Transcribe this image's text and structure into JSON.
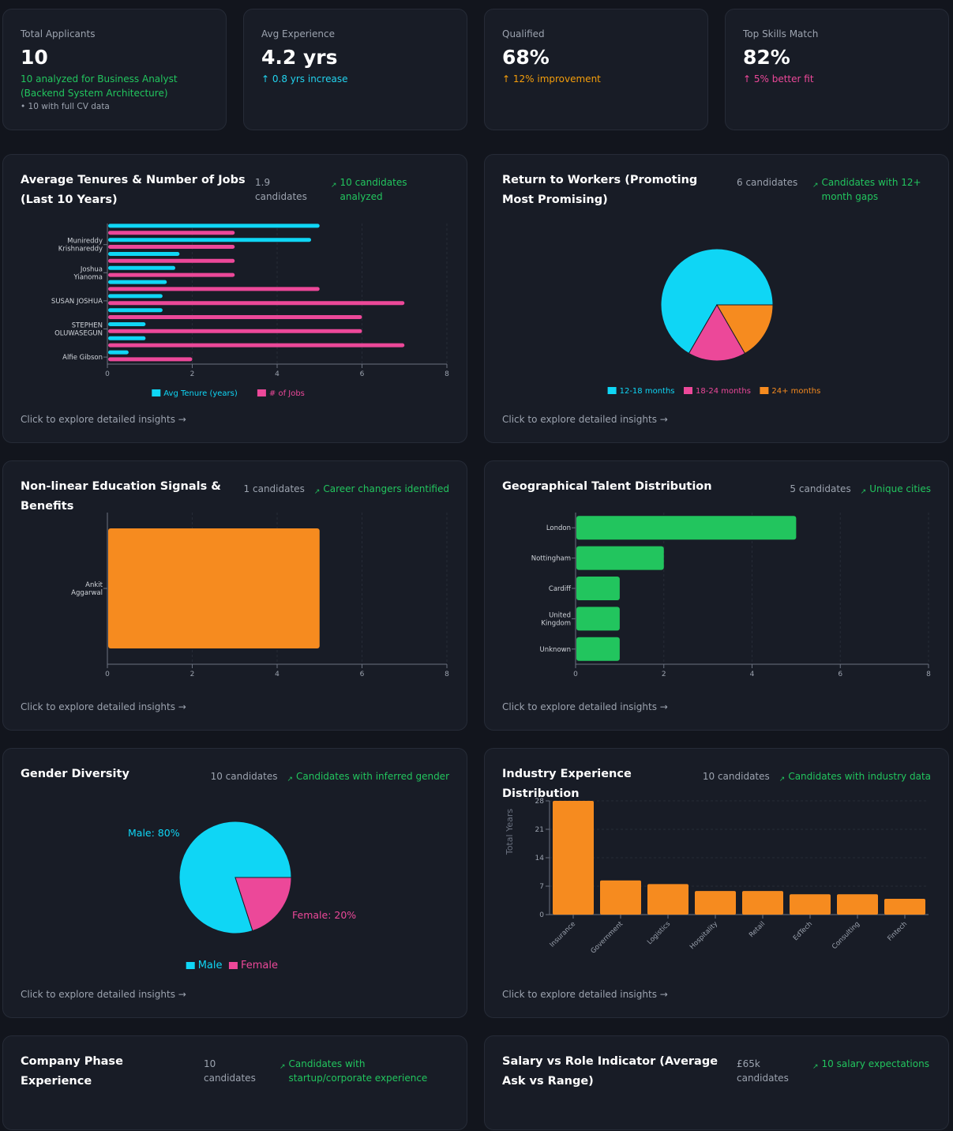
{
  "kpis": [
    {
      "label": "Total Applicants",
      "value": "10",
      "sub": "10 analyzed for Business Analyst (Backend System Architecture)",
      "sub_color": "#22c55e",
      "note": "• 10 with full CV data"
    },
    {
      "label": "Avg Experience",
      "value": "4.2 yrs",
      "sub": "↑ 0.8 yrs increase",
      "sub_color": "#22d3ee"
    },
    {
      "label": "Qualified",
      "value": "68%",
      "sub": "↑ 12% improvement",
      "sub_color": "#f59e0b"
    },
    {
      "label": "Top Skills Match",
      "value": "82%",
      "sub": "↑ 5% better fit",
      "sub_color": "#ec4899"
    }
  ],
  "explore_label": "Click to explore detailed insights →",
  "cards": {
    "tenure": {
      "title": "Average Tenures & Number of Jobs (Last 10 Years)",
      "meta": "1.9 candidates",
      "trend": "10 candidates analyzed"
    },
    "returners": {
      "title": "Return to Workers (Promoting Most Promising)",
      "meta": "6 candidates",
      "trend": "Candidates with 12+ month gaps"
    },
    "education": {
      "title": "Non-linear Education Signals & Benefits",
      "meta": "1 candidates",
      "trend": "Career changers identified"
    },
    "geo": {
      "title": "Geographical Talent Distribution",
      "meta": "5 candidates",
      "trend": "Unique cities"
    },
    "gender": {
      "title": "Gender Diversity",
      "meta": "10 candidates",
      "trend": "Candidates with inferred gender"
    },
    "industry": {
      "title": "Industry Experience Distribution",
      "meta": "10 candidates",
      "trend": "Candidates with industry data"
    },
    "phase": {
      "title": "Company Phase Experience",
      "meta": "10 candidates",
      "trend": "Candidates with startup/corporate experience"
    },
    "salary": {
      "title": "Salary vs Role Indicator (Average Ask vs Range)",
      "meta": "£65k candidates",
      "trend": "10 salary expectations"
    }
  },
  "chart_data": [
    {
      "id": "tenure",
      "type": "bar",
      "orientation": "horizontal",
      "categories": [
        "",
        "Munireddy Krishnareddy",
        "",
        "Joshua Yianoma",
        "",
        "SUSAN JOSHUA",
        "",
        "STEPHEN OLUWASEGUN",
        "",
        "Alfie Gibson"
      ],
      "series": [
        {
          "name": "Avg Tenure (years)",
          "color": "#0fd6f5",
          "values": [
            5,
            4.8,
            1.7,
            1.6,
            1.4,
            1.3,
            1.3,
            0.9,
            0.9,
            0.5
          ]
        },
        {
          "name": "# of Jobs",
          "color": "#ec4899",
          "values": [
            3,
            3,
            3,
            3,
            5,
            7,
            6,
            6,
            7,
            2
          ]
        }
      ],
      "xlim": [
        0,
        8
      ],
      "xticks": [
        0,
        2,
        4,
        6,
        8
      ],
      "legend": "bottom"
    },
    {
      "id": "returners",
      "type": "pie",
      "slices": [
        {
          "name": "12-18 months",
          "value": 4,
          "color": "#0fd6f5"
        },
        {
          "name": "18-24 months",
          "value": 1,
          "color": "#ec4899"
        },
        {
          "name": "24+ months",
          "value": 1,
          "color": "#f68b1f"
        }
      ],
      "legend": "bottom"
    },
    {
      "id": "education",
      "type": "bar",
      "orientation": "horizontal",
      "categories": [
        "Ankit Aggarwal"
      ],
      "series": [
        {
          "color": "#f68b1f",
          "values": [
            5
          ]
        }
      ],
      "xlim": [
        0,
        8
      ],
      "xticks": [
        0,
        2,
        4,
        6,
        8
      ]
    },
    {
      "id": "geo",
      "type": "bar",
      "orientation": "horizontal",
      "categories": [
        "London",
        "Nottingham",
        "Cardiff",
        "United Kingdom",
        "Unknown"
      ],
      "series": [
        {
          "color": "#22c55e",
          "values": [
            5,
            2,
            1,
            1,
            1
          ]
        }
      ],
      "xlim": [
        0,
        8
      ],
      "xticks": [
        0,
        2,
        4,
        6,
        8
      ]
    },
    {
      "id": "gender",
      "type": "pie",
      "slices": [
        {
          "name": "Male",
          "value": 80,
          "label": "Male: 80%",
          "color": "#0fd6f5"
        },
        {
          "name": "Female",
          "value": 20,
          "label": "Female: 20%",
          "color": "#ec4899"
        }
      ],
      "legend": "bottom"
    },
    {
      "id": "industry",
      "type": "bar",
      "categories": [
        "Insurance",
        "Government",
        "Logistics",
        "Hospitality",
        "Retail",
        "EdTech",
        "Consulting",
        "Fintech"
      ],
      "series": [
        {
          "color": "#f68b1f",
          "values": [
            28,
            8.4,
            7.5,
            5.8,
            5.8,
            5,
            5,
            3.9
          ]
        }
      ],
      "ylim": [
        0,
        28
      ],
      "yticks": [
        0,
        7,
        14,
        21,
        28
      ],
      "ylabel": "Total Years"
    }
  ]
}
